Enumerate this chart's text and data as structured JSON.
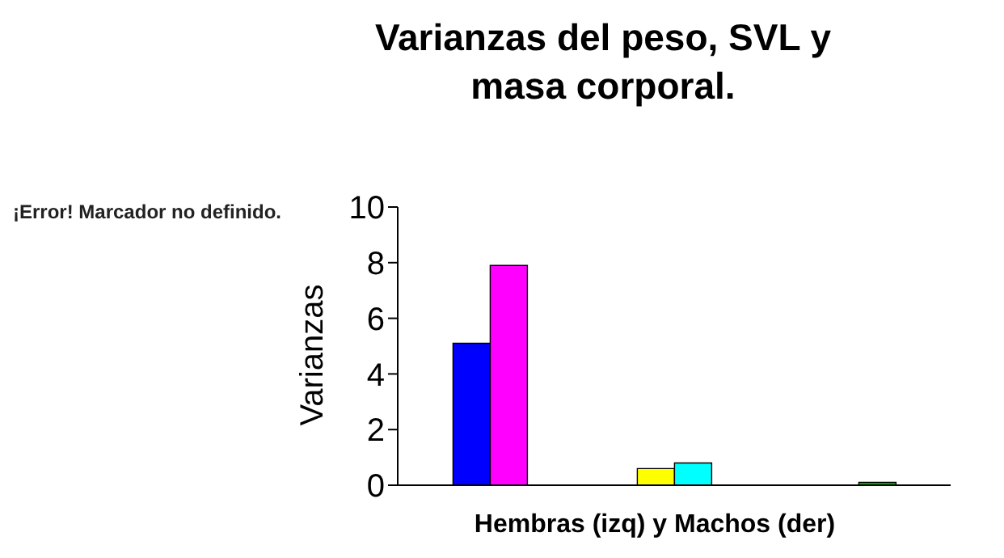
{
  "chart_data": {
    "type": "bar",
    "title": "Varianzas del peso, SVL y masa corporal.",
    "xlabel": "Hembras (izq) y Machos (der)",
    "ylabel": "Varianzas",
    "annotations": [
      "¡Error! Marcador no definido."
    ],
    "categories": [
      null,
      null,
      null
    ],
    "series": [
      {
        "colors": [
          "#0000ff",
          "#ffff00",
          "#006400"
        ],
        "values": [
          5.1,
          0.6,
          0.0
        ]
      },
      {
        "colors": [
          "#ff00ff",
          "#00ffff",
          "#00c000"
        ],
        "values": [
          7.9,
          0.8,
          0.1
        ]
      }
    ],
    "ylim": [
      0,
      10
    ],
    "yticks": [
      0,
      2,
      4,
      6,
      8,
      10
    ],
    "grid": false,
    "legend": false
  }
}
